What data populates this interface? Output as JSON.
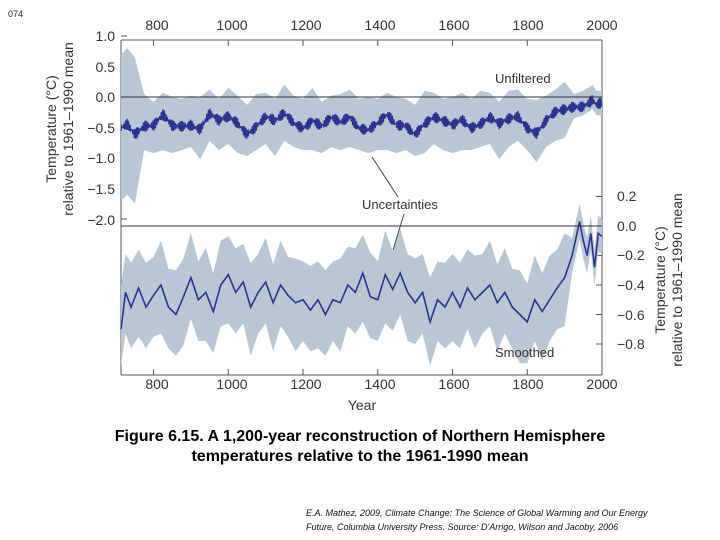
{
  "page_number": "074",
  "caption": {
    "line1": "Figure 6.15.  A 1,200-year reconstruction of Northern Hemisphere",
    "line2": "temperatures relative to the 1961-1990 mean"
  },
  "source": {
    "line1": "E.A. Mathez, 2009, Climate Change: The Science of Global Warming and Our Energy",
    "line2": "Future, Columbia University Press. Source: D'Arrigo, Wilson and Jacoby, 2006"
  },
  "colors": {
    "line": "#2b3590",
    "band": "#b9c6d4",
    "zero_line": "#333333",
    "axis": "#555555"
  },
  "chart_data": [
    {
      "type": "line",
      "panel": "unfiltered",
      "xlabel": "Year",
      "ylabel_line1": "Temperature (°C)",
      "ylabel_line2": "relative to 1961–1990 mean",
      "xlim": [
        713,
        2000
      ],
      "ylim": [
        -2.1,
        1.0
      ],
      "x_ticks": [
        800,
        1000,
        1200,
        1400,
        1600,
        1800,
        2000
      ],
      "x_tick_labels": [
        "800",
        "1000",
        "1200",
        "1400",
        "1600",
        "1800",
        "2000"
      ],
      "y_ticks": [
        1.0,
        0.5,
        0.0,
        -0.5,
        -1.0,
        -1.5,
        -2.0
      ],
      "y_tick_labels": [
        "1.0",
        "0.5",
        "0.0",
        "−0.5",
        "−1.0",
        "−1.5",
        "−2.0"
      ],
      "series": [
        {
          "name": "Unfiltered",
          "x": [
            713,
            730,
            750,
            775,
            800,
            825,
            850,
            875,
            900,
            925,
            950,
            975,
            1000,
            1025,
            1050,
            1075,
            1100,
            1125,
            1150,
            1175,
            1200,
            1225,
            1250,
            1275,
            1300,
            1325,
            1350,
            1375,
            1400,
            1425,
            1450,
            1475,
            1500,
            1525,
            1550,
            1575,
            1600,
            1625,
            1650,
            1675,
            1700,
            1725,
            1750,
            1775,
            1800,
            1825,
            1850,
            1875,
            1900,
            1925,
            1950,
            1975,
            1985,
            2000
          ],
          "y": [
            -0.5,
            -0.4,
            -0.55,
            -0.45,
            -0.5,
            -0.35,
            -0.5,
            -0.45,
            -0.4,
            -0.5,
            -0.3,
            -0.45,
            -0.35,
            -0.4,
            -0.55,
            -0.45,
            -0.35,
            -0.45,
            -0.3,
            -0.4,
            -0.45,
            -0.35,
            -0.5,
            -0.4,
            -0.45,
            -0.3,
            -0.45,
            -0.5,
            -0.45,
            -0.35,
            -0.5,
            -0.45,
            -0.55,
            -0.4,
            -0.35,
            -0.45,
            -0.5,
            -0.35,
            -0.45,
            -0.4,
            -0.35,
            -0.5,
            -0.4,
            -0.3,
            -0.45,
            -0.55,
            -0.4,
            -0.3,
            -0.25,
            -0.15,
            -0.1,
            0.0,
            -0.1,
            -0.1
          ]
        }
      ],
      "annotations": [
        "Unfiltered",
        "Uncertainties"
      ]
    },
    {
      "type": "line",
      "panel": "smoothed",
      "xlabel": "Year",
      "ylabel_line1": "Temperature (°C)",
      "ylabel_line2": "relative to 1961–1990 mean",
      "xlim": [
        713,
        2000
      ],
      "ylim": [
        -0.95,
        0.3
      ],
      "x_ticks": [
        800,
        1000,
        1200,
        1400,
        1600,
        1800,
        2000
      ],
      "x_tick_labels": [
        "800",
        "1000",
        "1200",
        "1400",
        "1600",
        "1800",
        "2000"
      ],
      "y_ticks": [
        0.2,
        0.0,
        -0.2,
        -0.4,
        -0.6,
        -0.8
      ],
      "y_tick_labels": [
        "0.2",
        "0.0",
        "−0.2",
        "−0.4",
        "−0.6",
        "−0.8"
      ],
      "series": [
        {
          "name": "Smoothed",
          "x": [
            713,
            725,
            740,
            760,
            780,
            800,
            820,
            840,
            860,
            880,
            900,
            920,
            940,
            960,
            980,
            1000,
            1020,
            1040,
            1060,
            1080,
            1100,
            1120,
            1140,
            1160,
            1180,
            1200,
            1220,
            1240,
            1260,
            1280,
            1300,
            1320,
            1340,
            1360,
            1380,
            1400,
            1420,
            1440,
            1460,
            1480,
            1500,
            1520,
            1540,
            1560,
            1580,
            1600,
            1620,
            1640,
            1660,
            1680,
            1700,
            1720,
            1740,
            1760,
            1780,
            1800,
            1820,
            1840,
            1860,
            1880,
            1900,
            1920,
            1940,
            1950,
            1960,
            1970,
            1980,
            1990,
            2000
          ],
          "y": [
            -0.7,
            -0.45,
            -0.55,
            -0.42,
            -0.55,
            -0.47,
            -0.4,
            -0.55,
            -0.6,
            -0.48,
            -0.35,
            -0.5,
            -0.45,
            -0.58,
            -0.4,
            -0.33,
            -0.45,
            -0.38,
            -0.55,
            -0.45,
            -0.38,
            -0.52,
            -0.4,
            -0.47,
            -0.52,
            -0.5,
            -0.57,
            -0.5,
            -0.6,
            -0.5,
            -0.52,
            -0.4,
            -0.45,
            -0.32,
            -0.48,
            -0.5,
            -0.33,
            -0.43,
            -0.32,
            -0.45,
            -0.52,
            -0.45,
            -0.65,
            -0.5,
            -0.55,
            -0.45,
            -0.55,
            -0.42,
            -0.5,
            -0.45,
            -0.4,
            -0.52,
            -0.45,
            -0.55,
            -0.6,
            -0.65,
            -0.5,
            -0.58,
            -0.5,
            -0.42,
            -0.35,
            -0.2,
            0.03,
            -0.1,
            -0.2,
            -0.05,
            -0.28,
            -0.05,
            -0.07
          ]
        }
      ],
      "annotations": [
        "Smoothed"
      ]
    }
  ]
}
